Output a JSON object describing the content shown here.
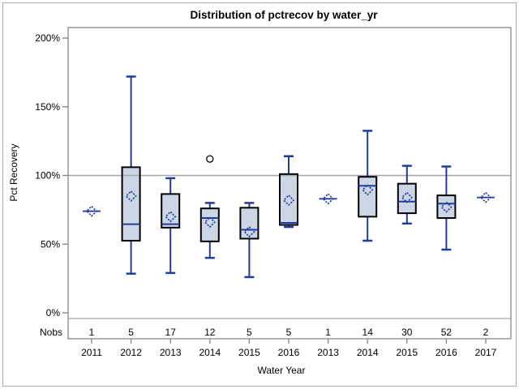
{
  "colors": {
    "box_fill": "#CCD6E5",
    "box_border": "#000000",
    "blue": "#1F3D99",
    "frame": "#909090",
    "reference_line": "#A6A6A6",
    "tick": "#808080",
    "outlier": "#000000",
    "text": "#000000",
    "background": "#FFFFFF",
    "image_border": "#ABABAB"
  },
  "chart_data": {
    "type": "boxplot",
    "title": "Distribution of pctrecov by water_yr",
    "xlabel": "Water Year",
    "ylabel": "Pct Recovery",
    "nobs_header": "Nobs",
    "ylim": [
      0,
      200
    ],
    "reference_line": 100,
    "grid": "off",
    "y_ticks": [
      {
        "label": "200%",
        "value": 200
      },
      {
        "label": "150%",
        "value": 150
      },
      {
        "label": "100%",
        "value": 100
      },
      {
        "label": "50%",
        "value": 50
      },
      {
        "label": "0%",
        "value": 0
      }
    ],
    "groups": [
      {
        "year": "2011",
        "nobs": 1,
        "type": "point",
        "median": 74,
        "mean": 74
      },
      {
        "year": "2012",
        "nobs": 5,
        "type": "box",
        "whisker_low": 28.5,
        "q1": 52.5,
        "median": 64.5,
        "q3": 106,
        "whisker_high": 172,
        "mean": 85
      },
      {
        "year": "2013",
        "nobs": 17,
        "type": "box",
        "whisker_low": 29,
        "q1": 62,
        "median": 64.5,
        "q3": 86.5,
        "whisker_high": 98,
        "mean": 70
      },
      {
        "year": "2014",
        "nobs": 12,
        "type": "box",
        "whisker_low": 40,
        "q1": 52,
        "median": 69,
        "q3": 76,
        "whisker_high": 80,
        "mean": 66,
        "outliers": [
          112
        ]
      },
      {
        "year": "2015",
        "nobs": 5,
        "type": "box",
        "whisker_low": 26,
        "q1": 54,
        "median": 60.5,
        "q3": 76.5,
        "whisker_high": 80,
        "mean": 59
      },
      {
        "year": "2016",
        "nobs": 5,
        "type": "box",
        "whisker_low": 62.5,
        "q1": 64,
        "median": 65.5,
        "q3": 101,
        "whisker_high": 114,
        "mean": 82
      },
      {
        "year": "2013",
        "nobs": 1,
        "type": "point",
        "median": 83,
        "mean": 83
      },
      {
        "year": "2014",
        "nobs": 14,
        "type": "box",
        "whisker_low": 52.5,
        "q1": 70,
        "median": 92.5,
        "q3": 99,
        "whisker_high": 132.5,
        "mean": 89.5
      },
      {
        "year": "2015",
        "nobs": 30,
        "type": "box",
        "whisker_low": 65,
        "q1": 72.5,
        "median": 81,
        "q3": 94,
        "whisker_high": 107,
        "mean": 84
      },
      {
        "year": "2016",
        "nobs": 52,
        "type": "box",
        "whisker_low": 46,
        "q1": 69,
        "median": 79.5,
        "q3": 85.5,
        "whisker_high": 106.5,
        "mean": 77
      },
      {
        "year": "2017",
        "nobs": 2,
        "type": "point",
        "median": 84,
        "mean": 84
      }
    ]
  }
}
